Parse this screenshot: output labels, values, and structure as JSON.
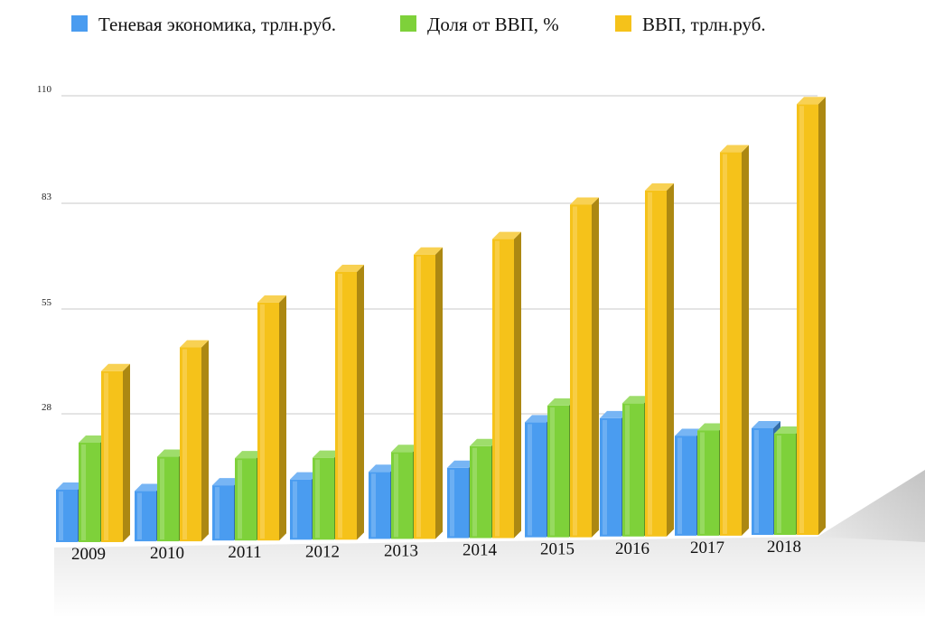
{
  "chart_data": {
    "type": "bar",
    "view": "3d",
    "legend_position": "top",
    "grid": true,
    "ylim": [
      0,
      110
    ],
    "yticks": [
      "28",
      "55",
      "83",
      "110"
    ],
    "categories": [
      "2009",
      "2010",
      "2011",
      "2012",
      "2013",
      "2014",
      "2015",
      "2016",
      "2017",
      "2018"
    ],
    "series": [
      {
        "name": "Теневая экономика, трлн.руб.",
        "color": "#4a9cf0",
        "values": [
          7,
          6.5,
          8,
          9.5,
          11.5,
          12.5,
          25,
          26,
          21,
          23
        ]
      },
      {
        "name": "Доля от ВВП, %",
        "color": "#7ed13a",
        "values": [
          20,
          16,
          15.5,
          15.5,
          17,
          18.5,
          29.5,
          30,
          22.5,
          21.5
        ]
      },
      {
        "name": "ВВП, трлн.руб.",
        "color": "#f5c21a",
        "values": [
          39,
          45,
          56.5,
          64.5,
          69,
          73,
          82,
          85.5,
          95,
          107
        ]
      }
    ]
  }
}
